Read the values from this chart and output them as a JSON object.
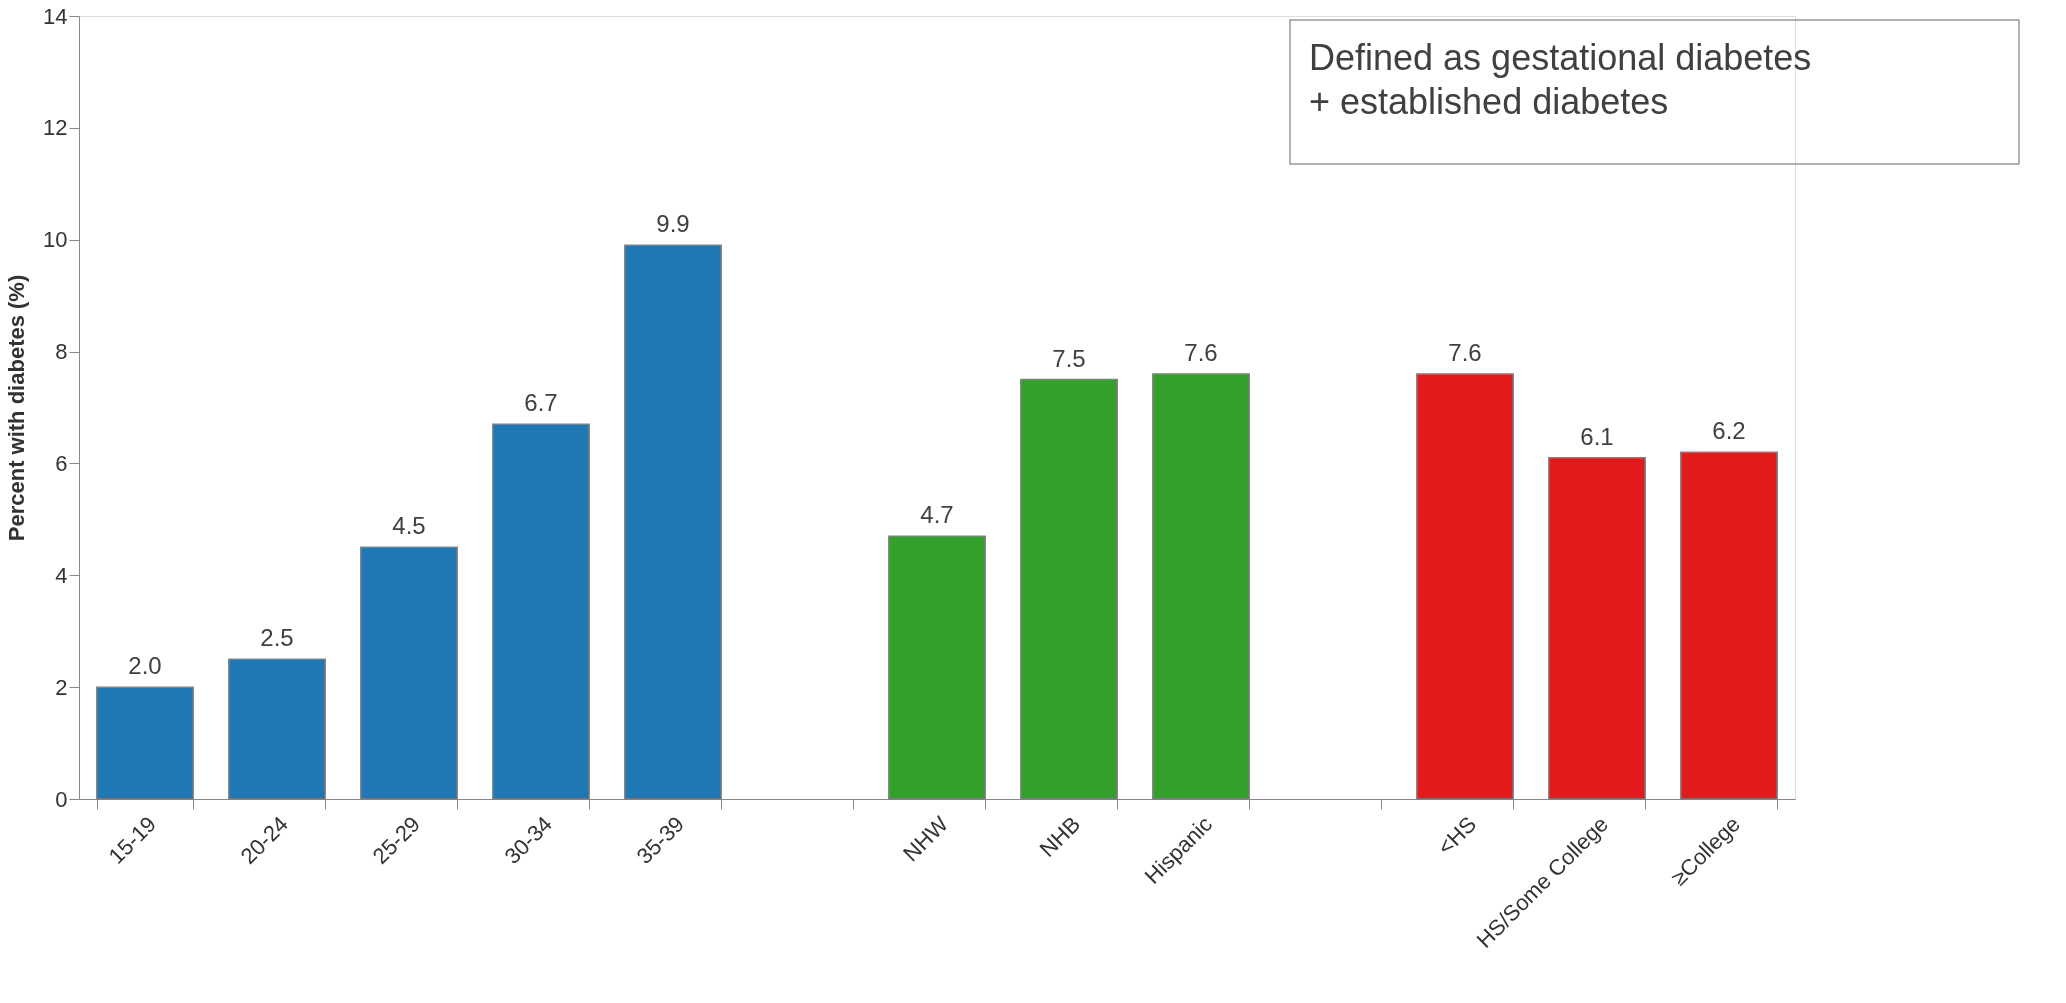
{
  "chart_data": {
    "type": "bar",
    "ylabel": "Percent with diabetes (%)",
    "categories": [
      "15-19",
      "20-24",
      "25-29",
      "30-34",
      "35-39",
      null,
      "NHW",
      "NHB",
      "Hispanic",
      null,
      "<HS",
      "HS/Some College",
      "≥College"
    ],
    "values": [
      2.0,
      2.5,
      4.5,
      6.7,
      9.9,
      null,
      4.7,
      7.5,
      7.6,
      null,
      7.6,
      6.1,
      6.2
    ],
    "colors": [
      "#1f77b4",
      "#1f77b4",
      "#1f77b4",
      "#1f77b4",
      "#1f77b4",
      null,
      "#33a02c",
      "#33a02c",
      "#33a02c",
      null,
      "#e31a1c",
      "#e31a1c",
      "#e31a1c"
    ],
    "ylim": [
      0,
      14
    ],
    "yticks": [
      0,
      2,
      4,
      6,
      8,
      10,
      12,
      14
    ],
    "value_labels": [
      "2.0",
      "2.5",
      "4.5",
      "6.7",
      "9.9",
      null,
      "4.7",
      "7.5",
      "7.6",
      null,
      "7.6",
      "6.1",
      "6.2"
    ],
    "grid": false,
    "annotations": [
      "Defined as gestational diabetes\n+ established diabetes"
    ]
  }
}
